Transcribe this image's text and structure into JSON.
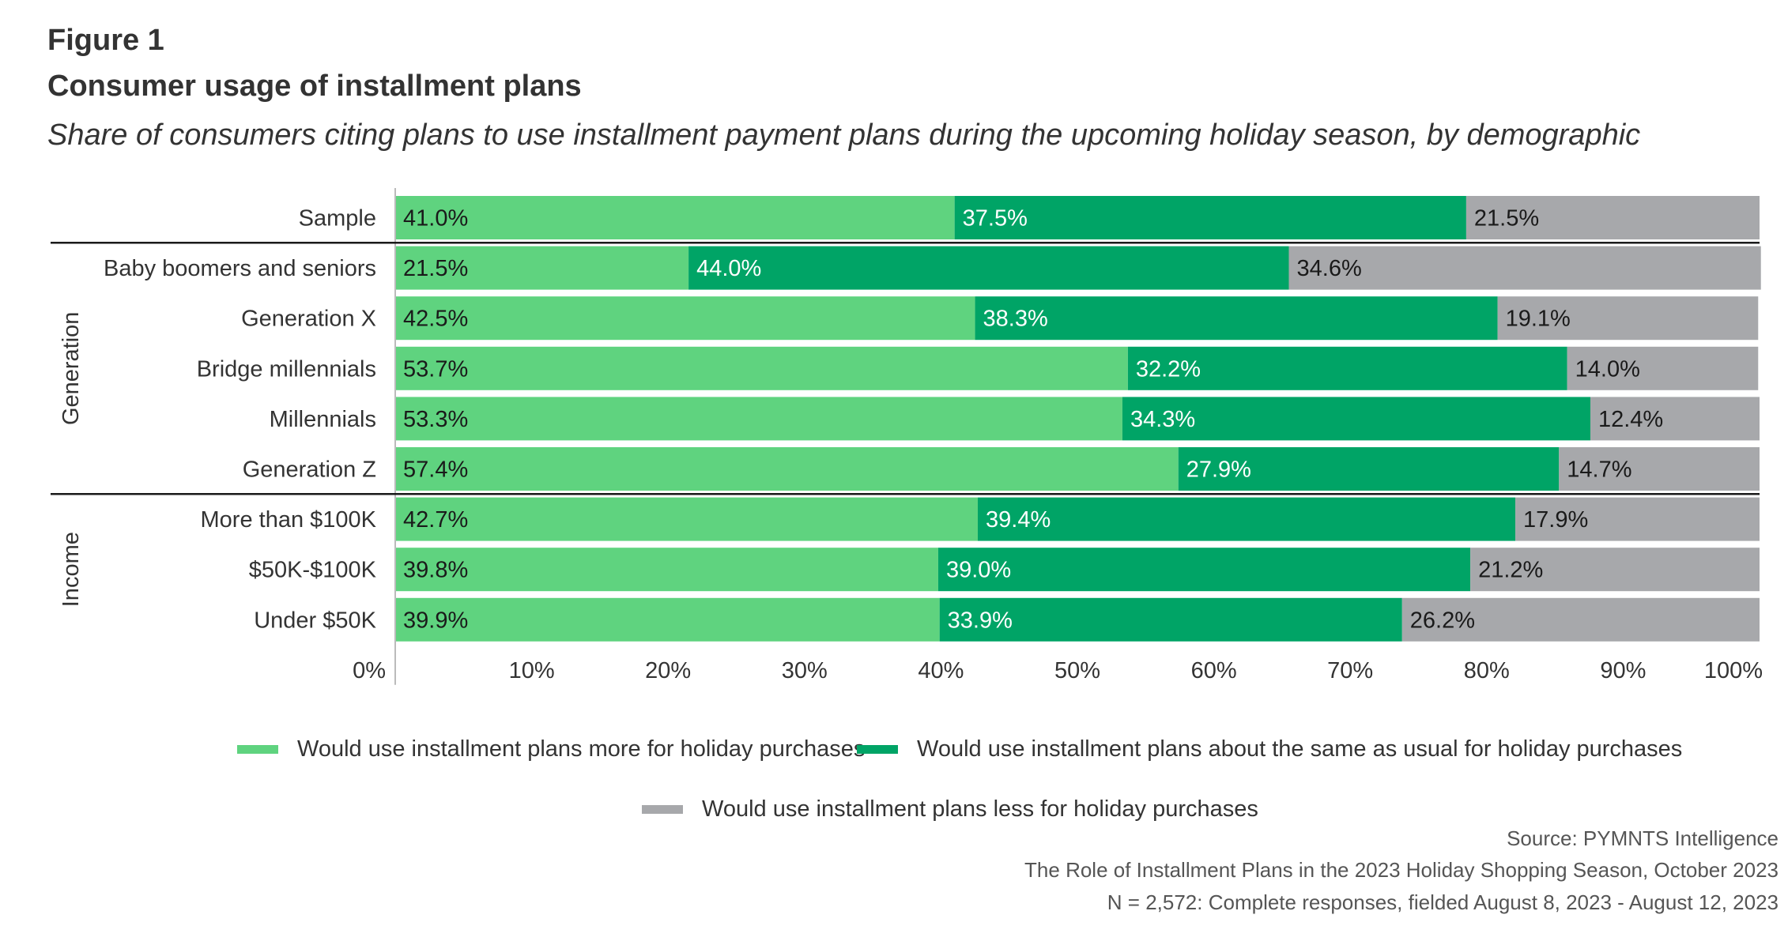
{
  "figure_label": "Figure 1",
  "title": "Consumer usage of installment plans",
  "subtitle": "Share of consumers citing plans to use installment payment plans during the upcoming holiday season, by demographic",
  "chart_data": {
    "type": "bar",
    "orientation": "horizontal",
    "stacked": true,
    "categories": [
      "Sample",
      "Baby boomers and seniors",
      "Generation X",
      "Bridge millennials",
      "Millennials",
      "Generation Z",
      "More than $100K",
      "$50K-$100K",
      "Under $50K"
    ],
    "groups": [
      {
        "name": "Generation",
        "categories": [
          "Baby boomers and seniors",
          "Generation X",
          "Bridge millennials",
          "Millennials",
          "Generation Z"
        ]
      },
      {
        "name": "Income",
        "categories": [
          "More than $100K",
          "$50K-$100K",
          "Under $50K"
        ]
      }
    ],
    "series": [
      {
        "name": "Would use installment plans more for holiday purchases",
        "color": "#5fd37f",
        "values": [
          41.0,
          21.5,
          42.5,
          53.7,
          53.3,
          57.4,
          42.7,
          39.8,
          39.9
        ]
      },
      {
        "name": "Would use installment plans about the same as usual for holiday purchases",
        "color": "#00a466",
        "values": [
          37.5,
          44.0,
          38.3,
          32.2,
          34.3,
          27.9,
          39.4,
          39.0,
          33.9
        ]
      },
      {
        "name": "Would use installment plans less for holiday purchases",
        "color": "#a7a8ab",
        "values": [
          21.5,
          34.6,
          19.1,
          14.0,
          12.4,
          14.7,
          17.9,
          21.2,
          26.2
        ]
      }
    ],
    "data_labels": [
      [
        "41.0%",
        "37.5%",
        "21.5%"
      ],
      [
        "21.5%",
        "44.0%",
        "34.6%"
      ],
      [
        "42.5%",
        "38.3%",
        "19.1%"
      ],
      [
        "53.7%",
        "32.2%",
        "14.0%"
      ],
      [
        "53.3%",
        "34.3%",
        "12.4%"
      ],
      [
        "57.4%",
        "27.9%",
        "14.7%"
      ],
      [
        "42.7%",
        "39.4%",
        "17.9%"
      ],
      [
        "39.8%",
        "39.0%",
        "21.2%"
      ],
      [
        "39.9%",
        "33.9%",
        "26.2%"
      ]
    ],
    "label_colors": [
      "#1a1a1a",
      "#ffffff",
      "#1a1a1a"
    ],
    "xlim": [
      0,
      100
    ],
    "xticks": [
      0,
      10,
      20,
      30,
      40,
      50,
      60,
      70,
      80,
      90,
      100
    ],
    "xtick_labels": [
      "0%",
      "10%",
      "20%",
      "30%",
      "40%",
      "50%",
      "60%",
      "70%",
      "80%",
      "90%",
      "100%"
    ],
    "legend_position": "bottom"
  },
  "footer": {
    "source": "Source: PYMNTS Intelligence",
    "report": "The Role of Installment Plans in the 2023 Holiday Shopping Season, October 2023",
    "sample": "N = 2,572: Complete responses, fielded August 8, 2023 - August 12, 2023"
  }
}
